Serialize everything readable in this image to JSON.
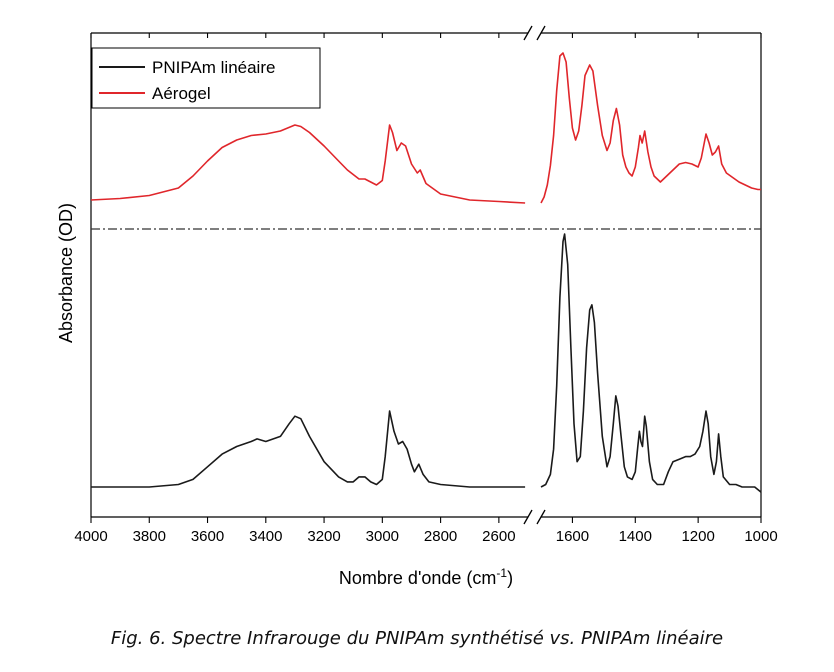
{
  "chart_data": {
    "type": "line",
    "title": "",
    "xlabel": "Nombre d'onde (cm",
    "xlabel_sup": "-1",
    "xlabel_close": ")",
    "ylabel": "Absorbance (OD)",
    "x_reversed": true,
    "x_axis_break": "between 2500 and 1700 cm-1",
    "xlim_left": [
      4000,
      2500
    ],
    "xlim_right": [
      1700,
      1000
    ],
    "left_ticks": [
      4000,
      3800,
      3600,
      3400,
      3200,
      3000,
      2800,
      2600
    ],
    "right_ticks": [
      1600,
      1400,
      1200,
      1000
    ],
    "y_ticks_shown": false,
    "grid": false,
    "legend_placement": "top-left",
    "separator": "dash-dot line between the two stacked spectra",
    "series": [
      {
        "name": "Aérogel",
        "color": "#e0262b",
        "position": "top",
        "left_points": [
          [
            4000,
            0.02
          ],
          [
            3900,
            0.03
          ],
          [
            3800,
            0.05
          ],
          [
            3700,
            0.1
          ],
          [
            3650,
            0.18
          ],
          [
            3600,
            0.28
          ],
          [
            3550,
            0.37
          ],
          [
            3500,
            0.42
          ],
          [
            3450,
            0.45
          ],
          [
            3400,
            0.46
          ],
          [
            3350,
            0.48
          ],
          [
            3300,
            0.52
          ],
          [
            3280,
            0.51
          ],
          [
            3250,
            0.47
          ],
          [
            3200,
            0.38
          ],
          [
            3150,
            0.28
          ],
          [
            3120,
            0.22
          ],
          [
            3100,
            0.19
          ],
          [
            3080,
            0.16
          ],
          [
            3060,
            0.16
          ],
          [
            3040,
            0.14
          ],
          [
            3020,
            0.12
          ],
          [
            3000,
            0.15
          ],
          [
            2990,
            0.28
          ],
          [
            2975,
            0.52
          ],
          [
            2965,
            0.47
          ],
          [
            2950,
            0.35
          ],
          [
            2935,
            0.4
          ],
          [
            2920,
            0.38
          ],
          [
            2900,
            0.26
          ],
          [
            2880,
            0.2
          ],
          [
            2870,
            0.22
          ],
          [
            2850,
            0.13
          ],
          [
            2800,
            0.06
          ],
          [
            2700,
            0.02
          ],
          [
            2600,
            0.01
          ],
          [
            2510,
            0.0
          ]
        ],
        "right_points": [
          [
            1700,
            0.0
          ],
          [
            1690,
            0.04
          ],
          [
            1680,
            0.12
          ],
          [
            1670,
            0.25
          ],
          [
            1660,
            0.45
          ],
          [
            1650,
            0.75
          ],
          [
            1640,
            0.98
          ],
          [
            1630,
            1.0
          ],
          [
            1620,
            0.94
          ],
          [
            1610,
            0.7
          ],
          [
            1600,
            0.5
          ],
          [
            1590,
            0.42
          ],
          [
            1580,
            0.48
          ],
          [
            1570,
            0.65
          ],
          [
            1560,
            0.85
          ],
          [
            1545,
            0.92
          ],
          [
            1535,
            0.88
          ],
          [
            1520,
            0.65
          ],
          [
            1505,
            0.45
          ],
          [
            1490,
            0.35
          ],
          [
            1480,
            0.4
          ],
          [
            1470,
            0.55
          ],
          [
            1460,
            0.63
          ],
          [
            1450,
            0.52
          ],
          [
            1440,
            0.32
          ],
          [
            1430,
            0.24
          ],
          [
            1420,
            0.2
          ],
          [
            1410,
            0.18
          ],
          [
            1400,
            0.24
          ],
          [
            1390,
            0.37
          ],
          [
            1385,
            0.45
          ],
          [
            1378,
            0.4
          ],
          [
            1370,
            0.48
          ],
          [
            1360,
            0.34
          ],
          [
            1350,
            0.24
          ],
          [
            1340,
            0.18
          ],
          [
            1320,
            0.14
          ],
          [
            1300,
            0.18
          ],
          [
            1280,
            0.22
          ],
          [
            1260,
            0.26
          ],
          [
            1240,
            0.27
          ],
          [
            1220,
            0.26
          ],
          [
            1200,
            0.24
          ],
          [
            1190,
            0.3
          ],
          [
            1175,
            0.46
          ],
          [
            1165,
            0.4
          ],
          [
            1155,
            0.32
          ],
          [
            1145,
            0.34
          ],
          [
            1135,
            0.38
          ],
          [
            1125,
            0.26
          ],
          [
            1110,
            0.2
          ],
          [
            1090,
            0.17
          ],
          [
            1070,
            0.14
          ],
          [
            1050,
            0.12
          ],
          [
            1030,
            0.1
          ],
          [
            1010,
            0.09
          ],
          [
            1000,
            0.09
          ]
        ]
      },
      {
        "name": "PNIPAm linéaire",
        "color": "#1a1a1a",
        "position": "bottom",
        "left_points": [
          [
            4000,
            0.0
          ],
          [
            3900,
            0.0
          ],
          [
            3800,
            0.0
          ],
          [
            3700,
            0.01
          ],
          [
            3650,
            0.03
          ],
          [
            3600,
            0.08
          ],
          [
            3550,
            0.13
          ],
          [
            3500,
            0.16
          ],
          [
            3450,
            0.18
          ],
          [
            3430,
            0.19
          ],
          [
            3400,
            0.18
          ],
          [
            3350,
            0.2
          ],
          [
            3320,
            0.25
          ],
          [
            3300,
            0.28
          ],
          [
            3280,
            0.27
          ],
          [
            3250,
            0.2
          ],
          [
            3200,
            0.1
          ],
          [
            3150,
            0.04
          ],
          [
            3120,
            0.02
          ],
          [
            3100,
            0.02
          ],
          [
            3080,
            0.04
          ],
          [
            3060,
            0.04
          ],
          [
            3040,
            0.02
          ],
          [
            3020,
            0.01
          ],
          [
            3000,
            0.03
          ],
          [
            2990,
            0.12
          ],
          [
            2975,
            0.3
          ],
          [
            2960,
            0.22
          ],
          [
            2945,
            0.17
          ],
          [
            2930,
            0.18
          ],
          [
            2915,
            0.15
          ],
          [
            2900,
            0.09
          ],
          [
            2890,
            0.06
          ],
          [
            2875,
            0.09
          ],
          [
            2860,
            0.05
          ],
          [
            2840,
            0.02
          ],
          [
            2800,
            0.01
          ],
          [
            2700,
            0.0
          ],
          [
            2600,
            0.0
          ],
          [
            2510,
            0.0
          ]
        ],
        "right_points": [
          [
            1700,
            0.0
          ],
          [
            1685,
            0.01
          ],
          [
            1670,
            0.05
          ],
          [
            1660,
            0.15
          ],
          [
            1650,
            0.4
          ],
          [
            1640,
            0.75
          ],
          [
            1630,
            0.97
          ],
          [
            1625,
            1.0
          ],
          [
            1615,
            0.88
          ],
          [
            1605,
            0.55
          ],
          [
            1595,
            0.25
          ],
          [
            1585,
            0.1
          ],
          [
            1575,
            0.12
          ],
          [
            1565,
            0.3
          ],
          [
            1555,
            0.55
          ],
          [
            1545,
            0.7
          ],
          [
            1538,
            0.72
          ],
          [
            1530,
            0.65
          ],
          [
            1520,
            0.45
          ],
          [
            1505,
            0.2
          ],
          [
            1490,
            0.08
          ],
          [
            1480,
            0.12
          ],
          [
            1470,
            0.25
          ],
          [
            1462,
            0.36
          ],
          [
            1455,
            0.32
          ],
          [
            1445,
            0.2
          ],
          [
            1435,
            0.08
          ],
          [
            1425,
            0.04
          ],
          [
            1410,
            0.03
          ],
          [
            1400,
            0.06
          ],
          [
            1392,
            0.16
          ],
          [
            1387,
            0.22
          ],
          [
            1382,
            0.18
          ],
          [
            1377,
            0.16
          ],
          [
            1370,
            0.28
          ],
          [
            1365,
            0.24
          ],
          [
            1355,
            0.1
          ],
          [
            1345,
            0.03
          ],
          [
            1330,
            0.01
          ],
          [
            1310,
            0.01
          ],
          [
            1295,
            0.06
          ],
          [
            1280,
            0.1
          ],
          [
            1260,
            0.11
          ],
          [
            1240,
            0.12
          ],
          [
            1225,
            0.12
          ],
          [
            1210,
            0.13
          ],
          [
            1195,
            0.16
          ],
          [
            1185,
            0.22
          ],
          [
            1175,
            0.3
          ],
          [
            1168,
            0.25
          ],
          [
            1160,
            0.12
          ],
          [
            1150,
            0.05
          ],
          [
            1142,
            0.1
          ],
          [
            1135,
            0.21
          ],
          [
            1128,
            0.12
          ],
          [
            1120,
            0.04
          ],
          [
            1100,
            0.01
          ],
          [
            1080,
            0.01
          ],
          [
            1060,
            0.0
          ],
          [
            1040,
            0.0
          ],
          [
            1020,
            0.0
          ],
          [
            1000,
            -0.02
          ]
        ]
      }
    ]
  },
  "caption": "Fig. 6. Spectre Infrarouge du PNIPAm synthétisé vs. PNIPAm linéaire"
}
